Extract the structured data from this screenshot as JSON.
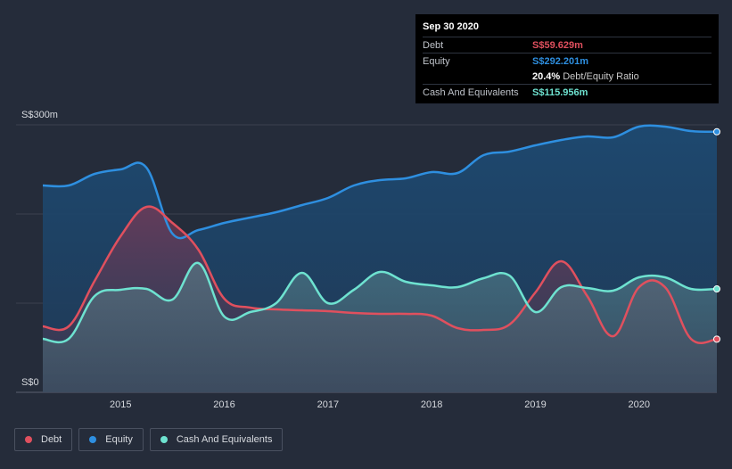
{
  "chart_data": {
    "type": "area",
    "currency_unit": "S$m",
    "y_axis": {
      "min_label": "S$0",
      "max_label": "S$300m",
      "ylim": [
        0,
        300
      ]
    },
    "x_axis": {
      "ticks": [
        "2015",
        "2016",
        "2017",
        "2018",
        "2019",
        "2020"
      ],
      "xlim": [
        2014.25,
        2020.75
      ]
    },
    "series": [
      {
        "name": "Equity",
        "color": "#2e8fe0",
        "points": [
          [
            2014.25,
            232
          ],
          [
            2014.5,
            232
          ],
          [
            2014.75,
            245
          ],
          [
            2015.0,
            250
          ],
          [
            2015.25,
            252
          ],
          [
            2015.5,
            178
          ],
          [
            2015.75,
            182
          ],
          [
            2016.0,
            190
          ],
          [
            2016.25,
            196
          ],
          [
            2016.5,
            202
          ],
          [
            2016.75,
            210
          ],
          [
            2017.0,
            218
          ],
          [
            2017.25,
            232
          ],
          [
            2017.5,
            238
          ],
          [
            2017.75,
            240
          ],
          [
            2018.0,
            247
          ],
          [
            2018.25,
            246
          ],
          [
            2018.5,
            266
          ],
          [
            2018.75,
            270
          ],
          [
            2019.0,
            277
          ],
          [
            2019.25,
            283
          ],
          [
            2019.5,
            287
          ],
          [
            2019.75,
            286
          ],
          [
            2020.0,
            298
          ],
          [
            2020.25,
            298
          ],
          [
            2020.5,
            293
          ],
          [
            2020.75,
            292.201
          ]
        ]
      },
      {
        "name": "Debt",
        "color": "#e0505e",
        "points": [
          [
            2014.25,
            74
          ],
          [
            2014.5,
            74
          ],
          [
            2014.75,
            125
          ],
          [
            2015.0,
            175
          ],
          [
            2015.25,
            208
          ],
          [
            2015.5,
            190
          ],
          [
            2015.75,
            160
          ],
          [
            2016.0,
            105
          ],
          [
            2016.25,
            95
          ],
          [
            2016.5,
            93
          ],
          [
            2016.75,
            92
          ],
          [
            2017.0,
            91
          ],
          [
            2017.25,
            89
          ],
          [
            2017.5,
            88
          ],
          [
            2017.75,
            88
          ],
          [
            2018.0,
            86
          ],
          [
            2018.25,
            72
          ],
          [
            2018.5,
            70
          ],
          [
            2018.75,
            76
          ],
          [
            2019.0,
            112
          ],
          [
            2019.25,
            147
          ],
          [
            2019.5,
            108
          ],
          [
            2019.75,
            63
          ],
          [
            2020.0,
            118
          ],
          [
            2020.25,
            118
          ],
          [
            2020.5,
            60
          ],
          [
            2020.75,
            59.629
          ]
        ]
      },
      {
        "name": "Cash And Equivalents",
        "color": "#6ee2d0",
        "points": [
          [
            2014.25,
            60
          ],
          [
            2014.5,
            60
          ],
          [
            2014.75,
            108
          ],
          [
            2015.0,
            115
          ],
          [
            2015.25,
            116
          ],
          [
            2015.5,
            104
          ],
          [
            2015.75,
            145
          ],
          [
            2016.0,
            85
          ],
          [
            2016.25,
            90
          ],
          [
            2016.5,
            100
          ],
          [
            2016.75,
            134
          ],
          [
            2017.0,
            100
          ],
          [
            2017.25,
            115
          ],
          [
            2017.5,
            135
          ],
          [
            2017.75,
            124
          ],
          [
            2018.0,
            120
          ],
          [
            2018.25,
            118
          ],
          [
            2018.5,
            128
          ],
          [
            2018.75,
            131
          ],
          [
            2019.0,
            90
          ],
          [
            2019.25,
            118
          ],
          [
            2019.5,
            117
          ],
          [
            2019.75,
            114
          ],
          [
            2020.0,
            129
          ],
          [
            2020.25,
            129
          ],
          [
            2020.5,
            116
          ],
          [
            2020.75,
            115.956
          ]
        ]
      }
    ]
  },
  "tooltip": {
    "date": "Sep 30 2020",
    "rows": [
      {
        "label": "Debt",
        "value": "S$59.629m",
        "color": "#e0505e"
      },
      {
        "label": "Equity",
        "value": "S$292.201m",
        "color": "#2e8fe0"
      },
      {
        "label": "",
        "value": "20.4%",
        "extra": "Debt/Equity Ratio",
        "color": "#ffffff"
      },
      {
        "label": "Cash And Equivalents",
        "value": "S$115.956m",
        "color": "#6ee2d0"
      }
    ]
  },
  "legend": [
    {
      "label": "Debt",
      "color": "#e0505e"
    },
    {
      "label": "Equity",
      "color": "#2e8fe0"
    },
    {
      "label": "Cash And Equivalents",
      "color": "#6ee2d0"
    }
  ]
}
